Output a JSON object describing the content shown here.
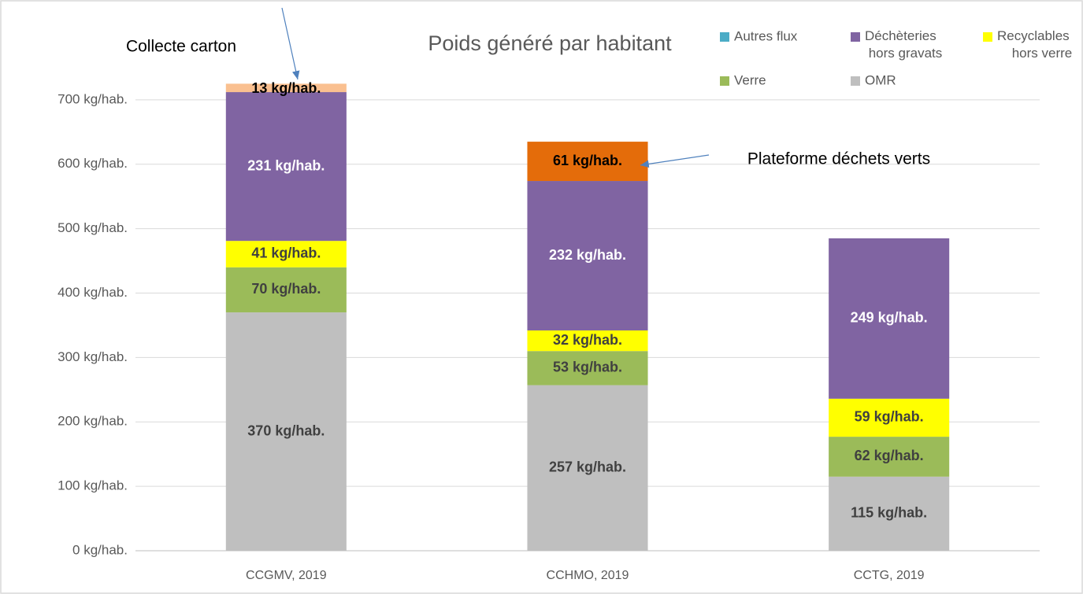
{
  "chart_data": {
    "type": "stacked_bar",
    "title": "Poids généré par habitant",
    "categories": [
      "CCGMV, 2019",
      "CCHMO, 2019",
      "CCTG, 2019"
    ],
    "series": [
      {
        "name": "OMR",
        "color": "#bfbfbf",
        "label_color": "#404040",
        "values": [
          370,
          257,
          115
        ],
        "value_labels": [
          "370 kg/hab.",
          "257 kg/hab.",
          "115 kg/hab."
        ]
      },
      {
        "name": "Verre",
        "color": "#9bbb59",
        "label_color": "#404040",
        "values": [
          70,
          53,
          62
        ],
        "value_labels": [
          "70 kg/hab.",
          "53 kg/hab.",
          "62 kg/hab."
        ]
      },
      {
        "name": "Recyclables hors verre",
        "color": "#ffff00",
        "label_color": "#404040",
        "values": [
          41,
          32,
          59
        ],
        "value_labels": [
          "41 kg/hab.",
          "32 kg/hab.",
          "59 kg/hab."
        ]
      },
      {
        "name": "Déchèteries hors gravats",
        "color": "#8064a2",
        "label_color": "#ffffff",
        "values": [
          231,
          232,
          249
        ],
        "value_labels": [
          "231 kg/hab.",
          "232 kg/hab.",
          "249 kg/hab."
        ]
      },
      {
        "name": "Autres flux",
        "color": "#4bacc6",
        "label_color": "#404040",
        "values": [
          null,
          null,
          null
        ]
      },
      {
        "name": "Collecte carton",
        "color": "#fac090",
        "label_color": "#000000",
        "legend": false,
        "values": [
          13,
          null,
          null
        ],
        "value_labels": [
          "13 kg/hab.",
          null,
          null
        ]
      },
      {
        "name": "Plateforme déchets verts",
        "color": "#e46c0a",
        "label_color": "#000000",
        "legend": false,
        "values": [
          null,
          61,
          null
        ],
        "value_labels": [
          null,
          "61 kg/hab.",
          null
        ]
      }
    ],
    "ylim": [
      0,
      800
    ],
    "yticks": [
      {
        "value": 0,
        "label": "0 kg/hab."
      },
      {
        "value": 100,
        "label": "100 kg/hab."
      },
      {
        "value": 200,
        "label": "200 kg/hab."
      },
      {
        "value": 300,
        "label": "300 kg/hab."
      },
      {
        "value": 400,
        "label": "400 kg/hab."
      },
      {
        "value": 500,
        "label": "500 kg/hab."
      },
      {
        "value": 600,
        "label": "600 kg/hab."
      },
      {
        "value": 700,
        "label": "700 kg/hab."
      }
    ],
    "grid": true
  }
}
